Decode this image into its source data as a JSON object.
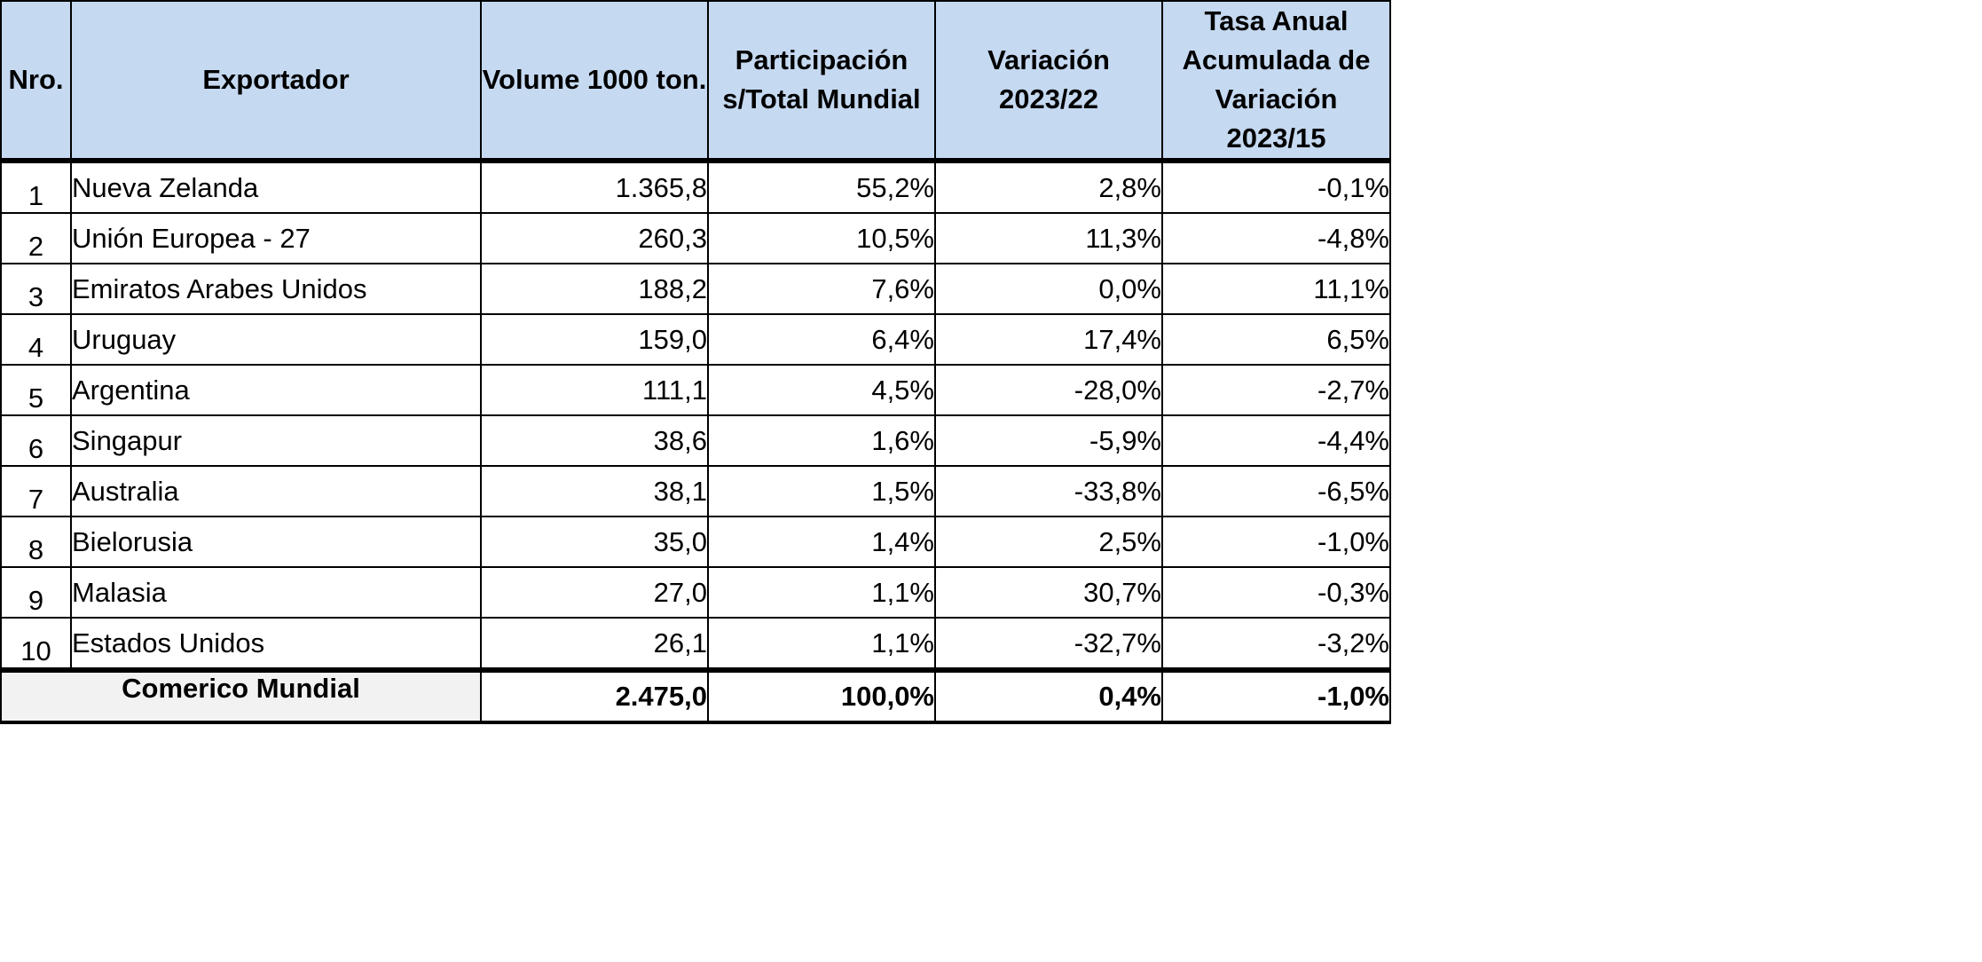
{
  "table": {
    "headers": {
      "nro": "Nro.",
      "exportador": "Exportador",
      "volume": "Volume 1000 ton.",
      "participacion_1": "Participación",
      "participacion_2": "s/Total Mundial",
      "variacion_1": "Variación",
      "variacion_2": "2023/22",
      "tasa_1": "Tasa Anual",
      "tasa_2": "Acumulada de",
      "tasa_3": "Variación 2023/15"
    },
    "rows": [
      {
        "nro": "1",
        "exportador": "Nueva Zelanda",
        "volume": "1.365,8",
        "participacion": "55,2%",
        "variacion": "2,8%",
        "tasa": "-0,1%"
      },
      {
        "nro": "2",
        "exportador": "Unión Europea - 27",
        "volume": "260,3",
        "participacion": "10,5%",
        "variacion": "11,3%",
        "tasa": "-4,8%"
      },
      {
        "nro": "3",
        "exportador": "Emiratos Arabes Unidos",
        "volume": "188,2",
        "participacion": "7,6%",
        "variacion": "0,0%",
        "tasa": "11,1%"
      },
      {
        "nro": "4",
        "exportador": "Uruguay",
        "volume": "159,0",
        "participacion": "6,4%",
        "variacion": "17,4%",
        "tasa": "6,5%"
      },
      {
        "nro": "5",
        "exportador": "Argentina",
        "volume": "111,1",
        "participacion": "4,5%",
        "variacion": "-28,0%",
        "tasa": "-2,7%"
      },
      {
        "nro": "6",
        "exportador": "Singapur",
        "volume": "38,6",
        "participacion": "1,6%",
        "variacion": "-5,9%",
        "tasa": "-4,4%"
      },
      {
        "nro": "7",
        "exportador": "Australia",
        "volume": "38,1",
        "participacion": "1,5%",
        "variacion": "-33,8%",
        "tasa": "-6,5%"
      },
      {
        "nro": "8",
        "exportador": "Bielorusia",
        "volume": "35,0",
        "participacion": "1,4%",
        "variacion": "2,5%",
        "tasa": "-1,0%"
      },
      {
        "nro": "9",
        "exportador": "Malasia",
        "volume": "27,0",
        "participacion": "1,1%",
        "variacion": "30,7%",
        "tasa": "-0,3%"
      },
      {
        "nro": "10",
        "exportador": "Estados Unidos",
        "volume": "26,1",
        "participacion": "1,1%",
        "variacion": "-32,7%",
        "tasa": "-3,2%"
      }
    ],
    "total": {
      "label": "Comerico Mundial",
      "volume": "2.475,0",
      "participacion": "100,0%",
      "variacion": "0,4%",
      "tasa": "-1,0%"
    }
  },
  "colors": {
    "header_bg": "#c5d9f1",
    "total_bg": "#f2f2f2",
    "border": "#000000"
  }
}
